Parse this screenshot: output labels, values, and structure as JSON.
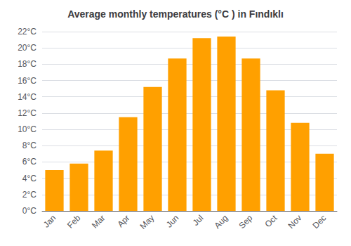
{
  "chart_data": {
    "type": "bar",
    "title": "Average monthly temperatures (°C ) in Fındıklı",
    "categories": [
      "Jan",
      "Feb",
      "Mar",
      "Apr",
      "May",
      "Jun",
      "Jul",
      "Aug",
      "Sep",
      "Oct",
      "Nov",
      "Dec"
    ],
    "values": [
      5.0,
      5.8,
      7.4,
      11.5,
      15.2,
      18.7,
      21.2,
      21.4,
      18.7,
      14.8,
      10.8,
      7.0
    ],
    "color": "#FFA000",
    "ylim": [
      0,
      22
    ],
    "yticks": [
      {
        "value": 0,
        "label": "0°C"
      },
      {
        "value": 2,
        "label": "2°C"
      },
      {
        "value": 4,
        "label": "4°C"
      },
      {
        "value": 6,
        "label": "6°C"
      },
      {
        "value": 8,
        "label": "8°C"
      },
      {
        "value": 10,
        "label": "10°C"
      },
      {
        "value": 12,
        "label": "12°C"
      },
      {
        "value": 14,
        "label": "14°C"
      },
      {
        "value": 16,
        "label": "16°C"
      },
      {
        "value": 18,
        "label": "18°C"
      },
      {
        "value": 20,
        "label": "20°C"
      },
      {
        "value": 22,
        "label": "22°C"
      }
    ],
    "grid": true
  }
}
